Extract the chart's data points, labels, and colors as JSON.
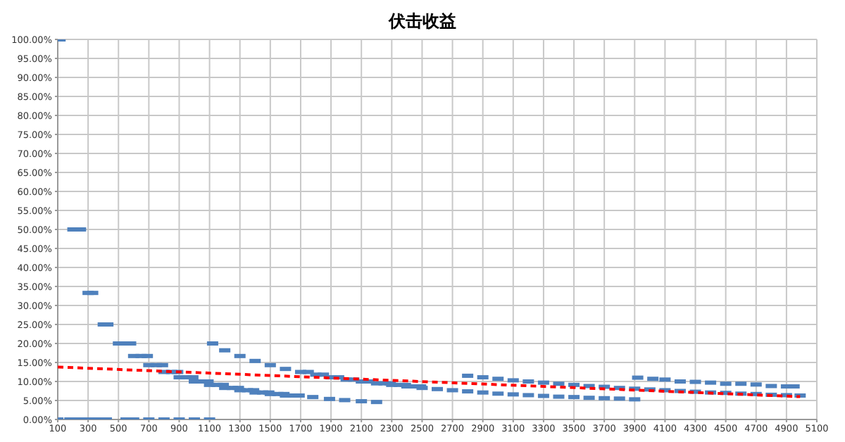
{
  "chart_data": {
    "type": "scatter",
    "title": "伏击收益",
    "marker": "square",
    "grid": true,
    "xlim": [
      100,
      5100
    ],
    "xticks": [
      100,
      300,
      500,
      700,
      900,
      1100,
      1300,
      1500,
      1700,
      1900,
      2100,
      2300,
      2500,
      2700,
      2900,
      3100,
      3300,
      3500,
      3700,
      3900,
      4100,
      4300,
      4500,
      4700,
      4900,
      5100
    ],
    "ylim": [
      0,
      100
    ],
    "yticks": [
      {
        "value": 0,
        "label": "0.00%"
      },
      {
        "value": 5,
        "label": "5.00%"
      },
      {
        "value": 10,
        "label": "10.00%"
      },
      {
        "value": 15,
        "label": "15.00%"
      },
      {
        "value": 20,
        "label": "20.00%"
      },
      {
        "value": 25,
        "label": "25.00%"
      },
      {
        "value": 30,
        "label": "30.00%"
      },
      {
        "value": 35,
        "label": "35.00%"
      },
      {
        "value": 40,
        "label": "40.00%"
      },
      {
        "value": 45,
        "label": "45.00%"
      },
      {
        "value": 50,
        "label": "50.00%"
      },
      {
        "value": 55,
        "label": "55.00%"
      },
      {
        "value": 60,
        "label": "60.00%"
      },
      {
        "value": 65,
        "label": "65.00%"
      },
      {
        "value": 70,
        "label": "70.00%"
      },
      {
        "value": 75,
        "label": "75.00%"
      },
      {
        "value": 80,
        "label": "80.00%"
      },
      {
        "value": 85,
        "label": "85.00%"
      },
      {
        "value": 90,
        "label": "90.00%"
      },
      {
        "value": 95,
        "label": "95.00%"
      },
      {
        "value": 100,
        "label": "100.00%"
      }
    ],
    "series": [
      {
        "color": "#4f81bd",
        "x": [
          100,
          180,
          220,
          280,
          320,
          370,
          420,
          550,
          600,
          700,
          800,
          900,
          1000,
          1100,
          115,
          200,
          250,
          300,
          330,
          400,
          430,
          500,
          540,
          580,
          600,
          650,
          690,
          700,
          750,
          790,
          800,
          850,
          890,
          900,
          950,
          990,
          1000,
          1050,
          1090,
          1100,
          1150,
          1190,
          1200,
          1250,
          1290,
          1300,
          1350,
          1390,
          1400,
          1450,
          1490,
          1500,
          1550,
          1590,
          1600,
          1650,
          1690,
          1780,
          1890,
          1990,
          2100,
          2200,
          1120,
          1200,
          1300,
          1400,
          1500,
          1600,
          1700,
          1750,
          1800,
          1850,
          1900,
          1950,
          2000,
          2050,
          2100,
          2150,
          2200,
          2250,
          2290,
          2300,
          2350,
          2390,
          2400,
          2450,
          2490,
          2500,
          2600,
          2700,
          2800,
          2900,
          3000,
          3100,
          3200,
          3300,
          3400,
          3500,
          3600,
          3700,
          3800,
          3900,
          2800,
          2900,
          3000,
          3100,
          3200,
          3300,
          3400,
          3500,
          3600,
          3700,
          3800,
          3900,
          4000,
          4100,
          4200,
          4300,
          4400,
          4500,
          4600,
          4700,
          4800,
          4900,
          4990,
          3920,
          4020,
          4100,
          4200,
          4300,
          4400,
          4500,
          4600,
          4700,
          4800,
          4900,
          4950
        ],
        "values": [
          0,
          0,
          0,
          0,
          0,
          0,
          0,
          0,
          0,
          0,
          0,
          0,
          0,
          0,
          100,
          50,
          50,
          33.3,
          33.3,
          25,
          25,
          20,
          20,
          20,
          16.7,
          16.7,
          16.7,
          14.3,
          14.3,
          14.3,
          12.5,
          12.5,
          12.5,
          11.1,
          11.1,
          11.1,
          10,
          10,
          10,
          9.1,
          9.1,
          9.1,
          8.3,
          8.3,
          8.3,
          7.7,
          7.7,
          7.7,
          7.1,
          7.1,
          7.1,
          6.7,
          6.7,
          6.7,
          6.3,
          6.3,
          6.3,
          5.9,
          5.4,
          5.1,
          4.8,
          4.6,
          20,
          18.2,
          16.7,
          15.4,
          14.3,
          13.3,
          12.5,
          12.5,
          11.8,
          11.8,
          11.1,
          11.1,
          10.5,
          10.5,
          10,
          10,
          9.5,
          9.5,
          9.5,
          9.1,
          9.1,
          9.1,
          8.7,
          8.7,
          8.7,
          8.3,
          8,
          7.7,
          7.4,
          7.1,
          6.8,
          6.6,
          6.4,
          6.2,
          6,
          5.9,
          5.7,
          5.6,
          5.5,
          5.3,
          11.5,
          11.1,
          10.7,
          10.3,
          10,
          9.7,
          9.4,
          9.1,
          8.8,
          8.6,
          8.3,
          8.1,
          7.9,
          7.7,
          7.5,
          7.3,
          7.1,
          7,
          6.8,
          6.7,
          6.5,
          6.4,
          6.3,
          11,
          10.7,
          10.5,
          10,
          9.9,
          9.7,
          9.4,
          9.4,
          9.2,
          8.8,
          8.7,
          8.7
        ]
      },
      {
        "type": "line",
        "color": "#ff0000",
        "line_style": "dashed",
        "marker": "none",
        "x": [
          100,
          4990
        ],
        "values": [
          13.8,
          6
        ]
      }
    ]
  }
}
